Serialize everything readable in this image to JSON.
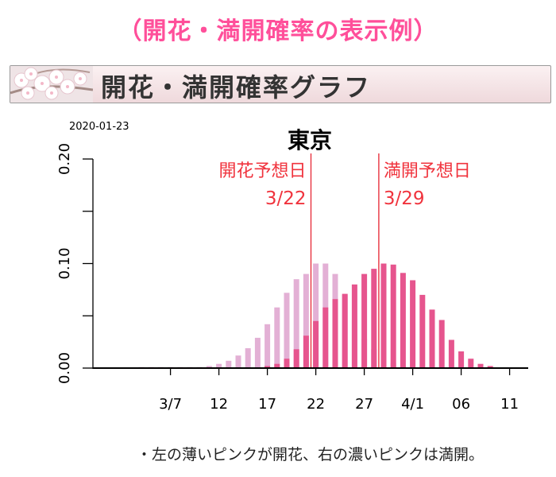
{
  "page": {
    "heading": "（開花・満開確率の表示例）",
    "banner_title": "開花・満開確率グラフ",
    "footnote": "・左の薄いピンクが開花、右の濃いピンクは満開。"
  },
  "colors": {
    "heading": "#ff4f9a",
    "bloom_series": "#e3b0d5",
    "full_bloom_series": "#e6558e",
    "marker_line": "#e8323f",
    "marker_text": "#f0333d"
  },
  "chart_data": {
    "type": "bar",
    "title": "東京",
    "date_stamp": "2020-01-23",
    "ylim": [
      0,
      0.2
    ],
    "yticks": [
      0.0,
      0.1,
      0.2
    ],
    "ytick_labels": [
      "0.00",
      "0.10",
      "0.20"
    ],
    "x_start": "2/28",
    "x_end": "4/14",
    "xticks": [
      {
        "day": 8,
        "label": "3/7"
      },
      {
        "day": 13,
        "label": "12"
      },
      {
        "day": 18,
        "label": "17"
      },
      {
        "day": 23,
        "label": "22"
      },
      {
        "day": 28,
        "label": "27"
      },
      {
        "day": 33,
        "label": "4/1"
      },
      {
        "day": 38,
        "label": "06"
      },
      {
        "day": 43,
        "label": "11"
      }
    ],
    "series": [
      {
        "key": "bloom",
        "start_day": 5,
        "values": [
          0.001,
          0.001,
          0.001,
          0.001,
          0.001,
          0.001,
          0.001,
          0.002,
          0.004,
          0.007,
          0.012,
          0.019,
          0.029,
          0.042,
          0.058,
          0.072,
          0.085,
          0.09,
          0.1,
          0.1,
          0.09,
          0.07,
          0.046,
          0.028,
          0.018,
          0.009,
          0.005,
          0.002,
          0.001,
          0.001
        ]
      },
      {
        "key": "full_bloom",
        "start_day": 18,
        "values": [
          0.002,
          0.004,
          0.009,
          0.018,
          0.031,
          0.045,
          0.058,
          0.066,
          0.071,
          0.08,
          0.09,
          0.095,
          0.1,
          0.099,
          0.091,
          0.084,
          0.07,
          0.056,
          0.046,
          0.027,
          0.016,
          0.009,
          0.004,
          0.002
        ]
      }
    ],
    "markers": [
      {
        "label": "開花予想日",
        "date": "3/22",
        "day": 22.5
      },
      {
        "label": "満開予想日",
        "date": "3/29",
        "day": 29.5
      }
    ]
  }
}
